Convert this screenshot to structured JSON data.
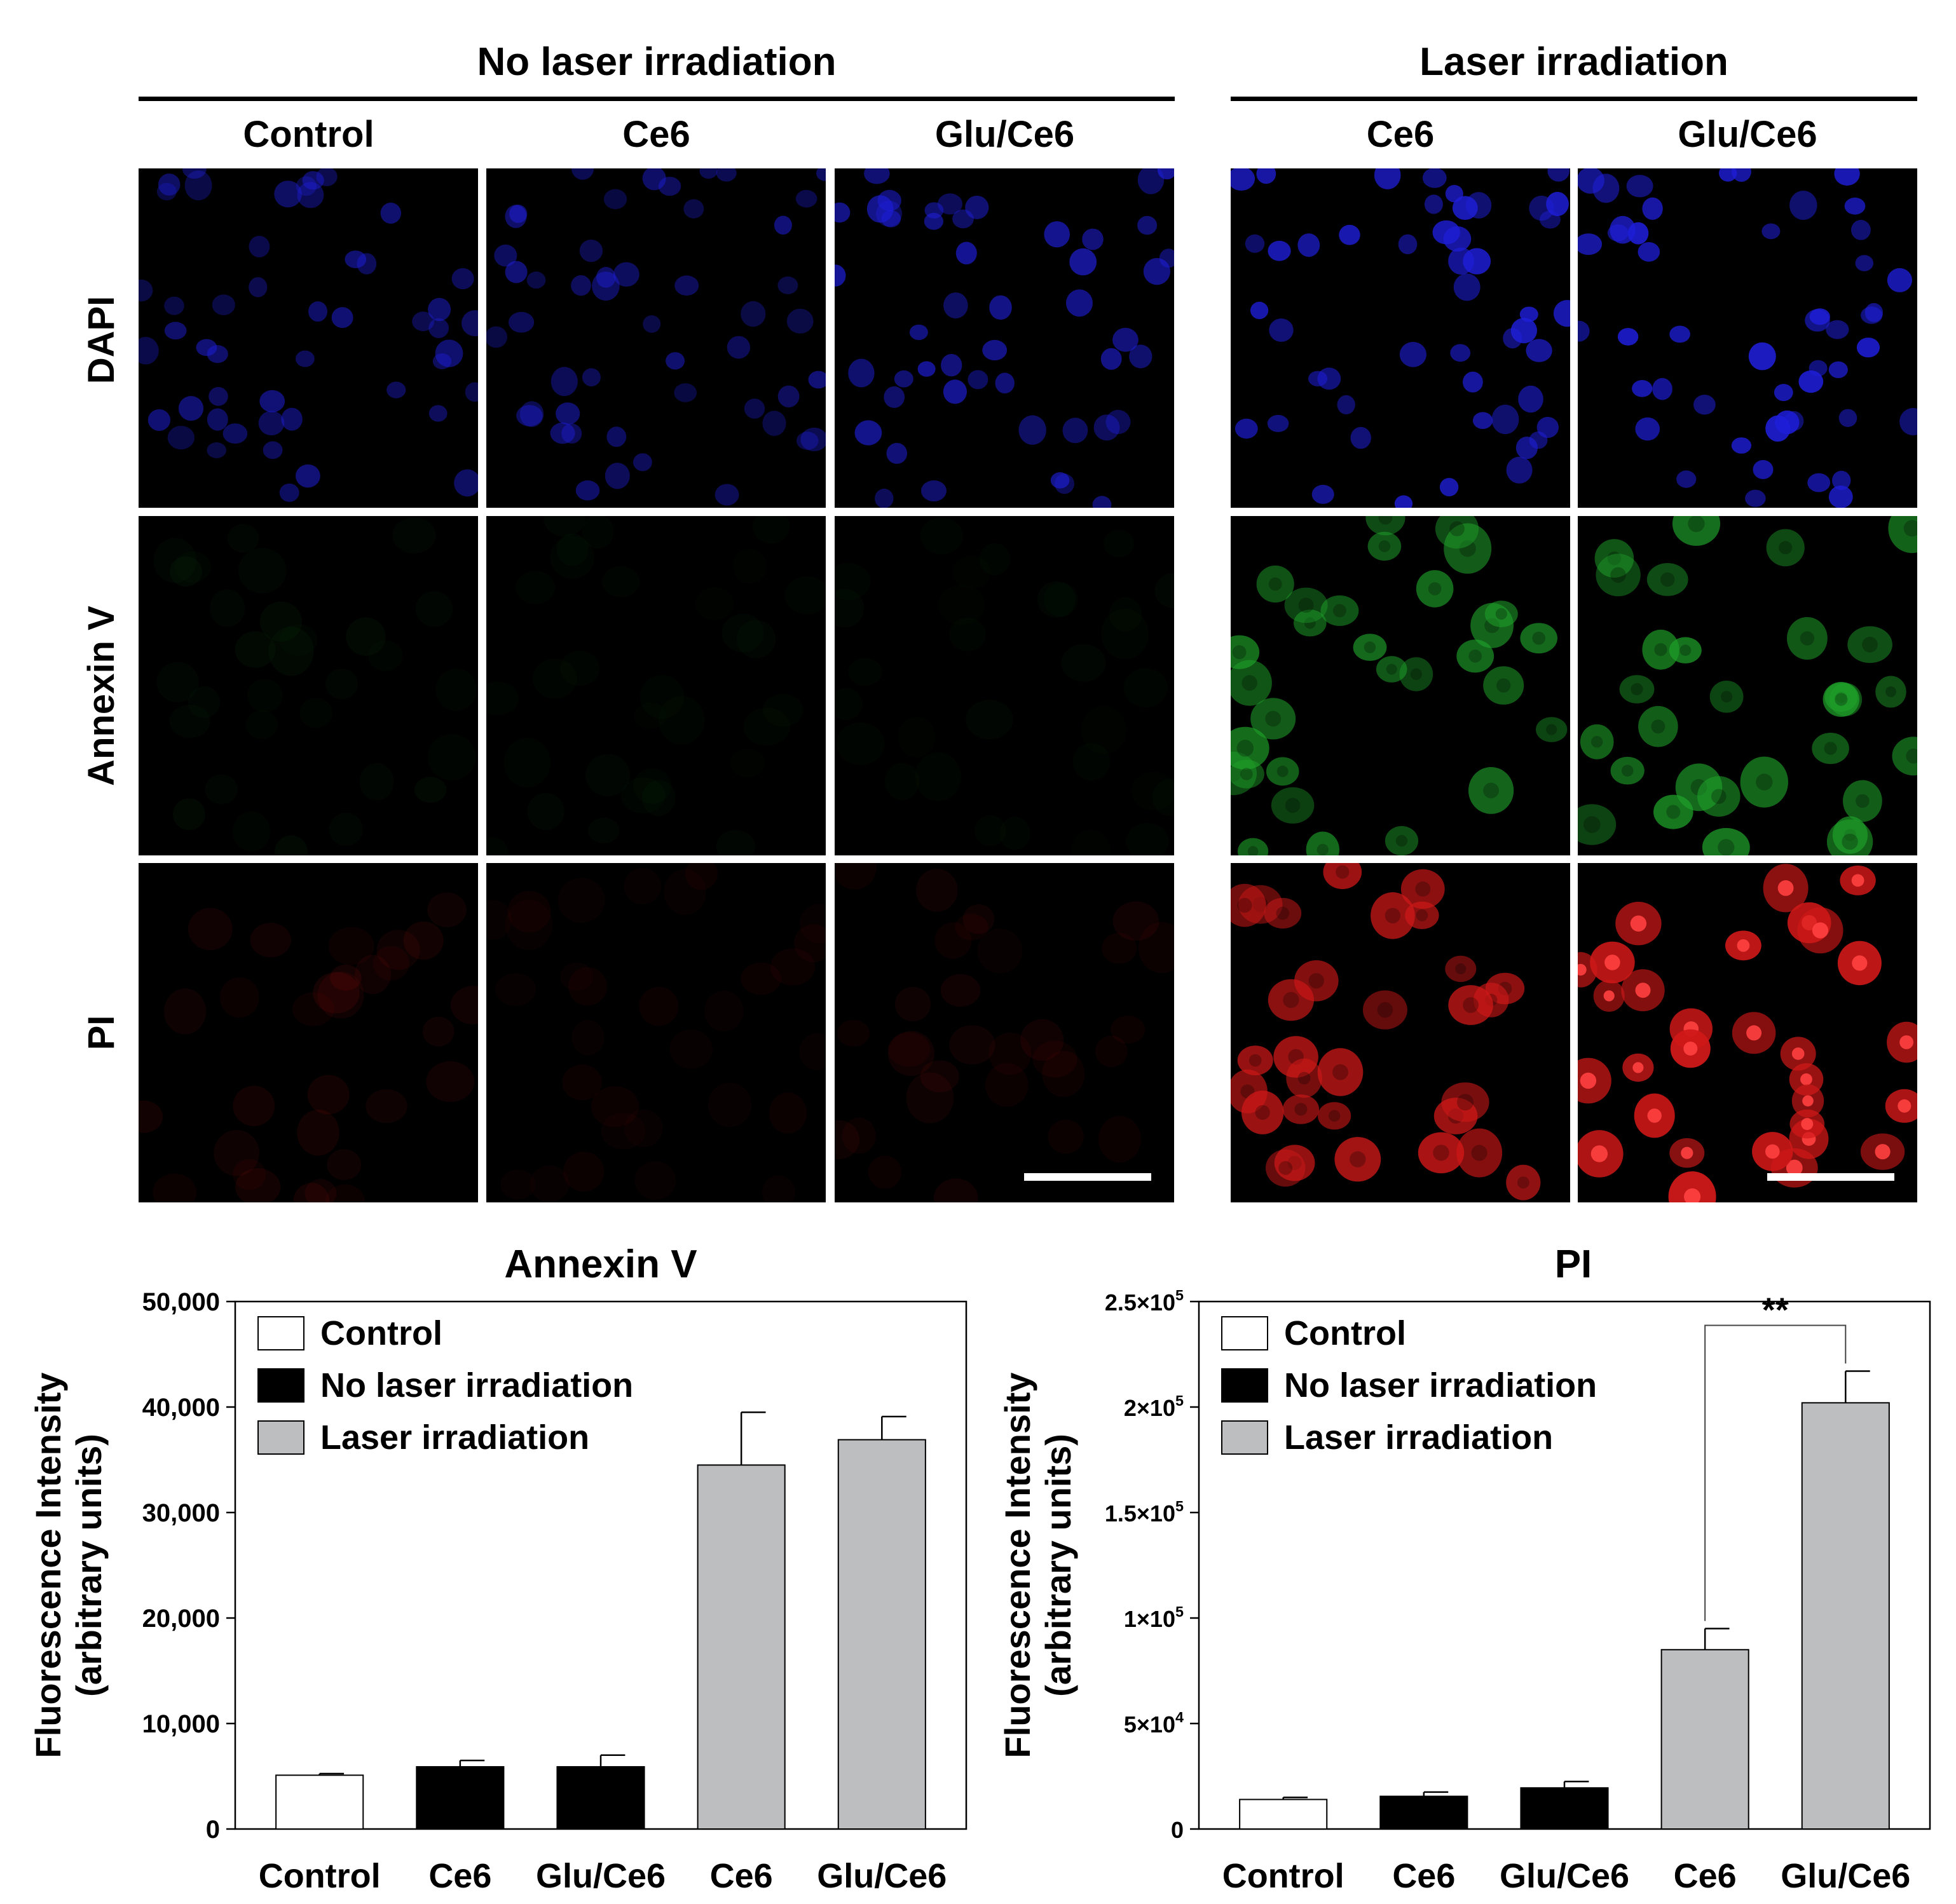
{
  "figure": {
    "group_headers": [
      "No laser irradiation",
      "Laser irradiation"
    ],
    "column_labels_no_laser": [
      "Control",
      "Ce6",
      "Glu/Ce6"
    ],
    "column_labels_laser": [
      "Ce6",
      "Glu/Ce6"
    ],
    "row_labels": [
      "DAPI",
      "Annexin V",
      "PI"
    ],
    "channel_colors": {
      "DAPI": "#1e1ed8",
      "Annexin V": "#1fa02a",
      "PI": "#d01818"
    }
  },
  "chart_data": [
    {
      "type": "bar",
      "title": "Annexin V",
      "ylabel_line1": "Fluorescence Intensity",
      "ylabel_line2": "(arbitrary units)",
      "categories": [
        "Control",
        "Ce6",
        "Glu/Ce6",
        "Ce6",
        "Glu/Ce6"
      ],
      "values": [
        5100,
        5900,
        5900,
        34500,
        36900
      ],
      "errors": [
        150,
        600,
        1100,
        5000,
        2200
      ],
      "groups": [
        "Control",
        "No laser irradiation",
        "No laser irradiation",
        "Laser irradiation",
        "Laser irradiation"
      ],
      "ylim": [
        0,
        50000
      ],
      "yticks": [
        0,
        10000,
        20000,
        30000,
        40000,
        50000
      ],
      "ytick_labels": [
        "0",
        "10,000",
        "20,000",
        "30,000",
        "40,000",
        "50,000"
      ],
      "legend": [
        {
          "label": "Control",
          "color": "#ffffff"
        },
        {
          "label": "No laser irradiation",
          "color": "#000000"
        },
        {
          "label": "Laser irradiation",
          "color": "#bcbec0"
        }
      ],
      "legend_position": "top-left"
    },
    {
      "type": "bar",
      "title": "PI",
      "ylabel_line1": "Fluorescence Intensity",
      "ylabel_line2": "(arbitrary units)",
      "categories": [
        "Control",
        "Ce6",
        "Glu/Ce6",
        "Ce6",
        "Glu/Ce6"
      ],
      "values": [
        14000,
        15500,
        19500,
        85000,
        202000
      ],
      "errors": [
        1000,
        2000,
        3000,
        10000,
        15000
      ],
      "groups": [
        "Control",
        "No laser irradiation",
        "No laser irradiation",
        "Laser irradiation",
        "Laser irradiation"
      ],
      "ylim": [
        0,
        250000
      ],
      "yticks": [
        0,
        50000,
        100000,
        150000,
        200000,
        250000
      ],
      "ytick_labels": [
        {
          "base": "0",
          "exp": ""
        },
        {
          "base": "5×10",
          "exp": "4"
        },
        {
          "base": "1×10",
          "exp": "5"
        },
        {
          "base": "1.5×10",
          "exp": "5"
        },
        {
          "base": "2×10",
          "exp": "5"
        },
        {
          "base": "2.5×10",
          "exp": "5"
        }
      ],
      "legend": [
        {
          "label": "Control",
          "color": "#ffffff"
        },
        {
          "label": "No laser irradiation",
          "color": "#000000"
        },
        {
          "label": "Laser irradiation",
          "color": "#bcbec0"
        }
      ],
      "legend_position": "top-left",
      "significance": {
        "from": 3,
        "to": 4,
        "label": "**"
      }
    }
  ]
}
